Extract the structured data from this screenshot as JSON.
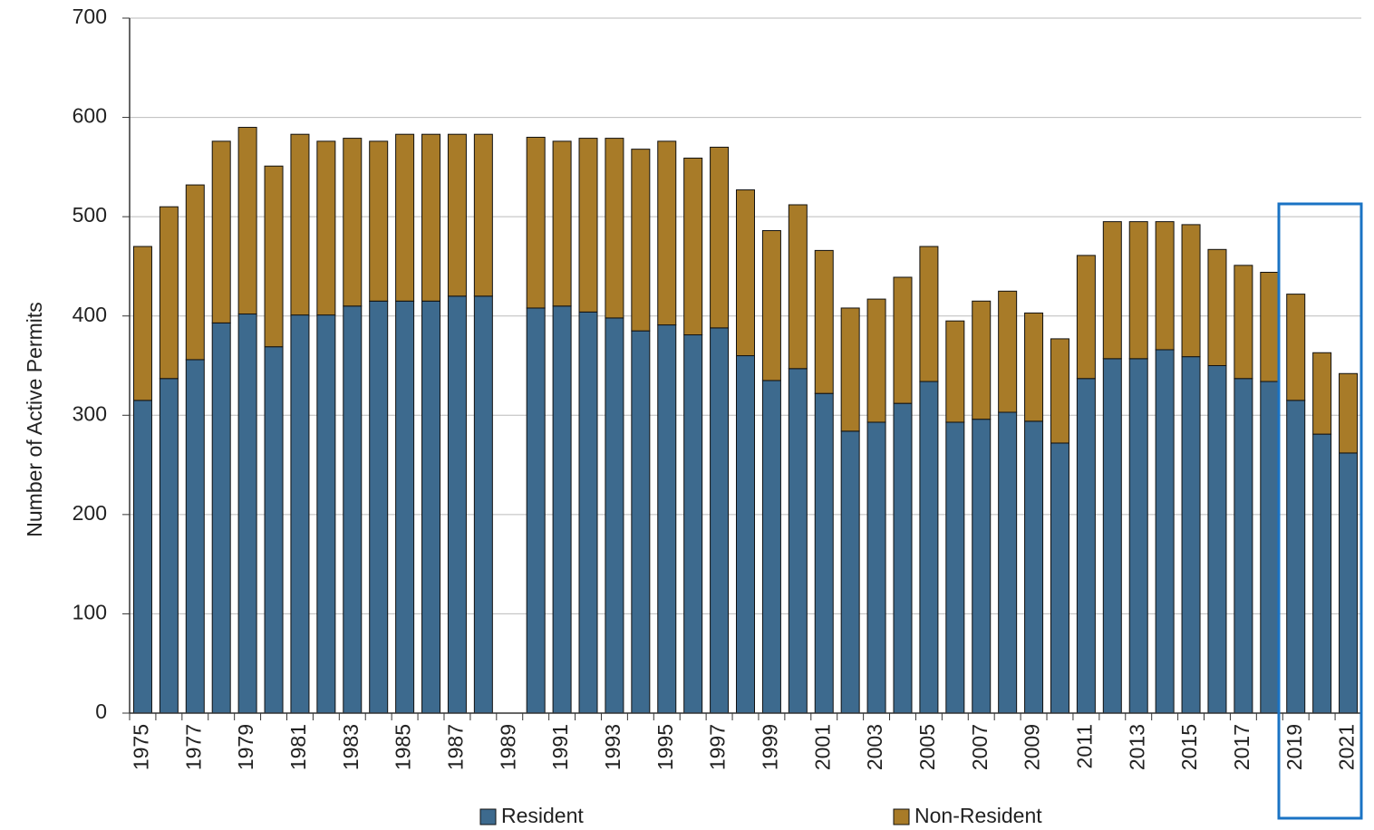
{
  "chart_data": {
    "type": "stacked_bar",
    "y_label": "Number of Active Permits",
    "categories": [
      "1975",
      null,
      "1977",
      null,
      "1979",
      null,
      "1981",
      null,
      "1983",
      null,
      "1985",
      null,
      "1987",
      null,
      "1989",
      null,
      "1991",
      null,
      "1993",
      null,
      "1995",
      null,
      "1997",
      null,
      "1999",
      null,
      "2001",
      null,
      "2003",
      null,
      "2005",
      null,
      "2007",
      null,
      "2009",
      null,
      "2011",
      null,
      "2013",
      null,
      "2015",
      null,
      "2017",
      null,
      "2019",
      null,
      "2021"
    ],
    "series": [
      {
        "name": "Resident",
        "color": "#3d6a8e",
        "values": [
          315,
          337,
          356,
          393,
          402,
          369,
          401,
          401,
          410,
          415,
          415,
          415,
          420,
          420,
          null,
          408,
          410,
          404,
          398,
          385,
          391,
          381,
          388,
          360,
          335,
          347,
          322,
          284,
          293,
          312,
          334,
          293,
          296,
          303,
          294,
          272,
          337,
          357,
          357,
          366,
          359,
          350,
          337,
          334,
          315,
          281,
          262
        ]
      },
      {
        "name": "Non-Resident",
        "color": "#a87b28",
        "values": [
          155,
          173,
          176,
          183,
          188,
          182,
          182,
          175,
          169,
          161,
          168,
          168,
          163,
          163,
          null,
          172,
          166,
          175,
          181,
          183,
          185,
          178,
          182,
          167,
          151,
          165,
          144,
          124,
          124,
          127,
          136,
          102,
          119,
          122,
          109,
          105,
          124,
          138,
          138,
          129,
          133,
          117,
          114,
          110,
          107,
          82,
          80
        ]
      }
    ],
    "ylim": [
      0,
      700
    ],
    "yticks": [
      0,
      100,
      200,
      300,
      400,
      500,
      600,
      700
    ],
    "grid": true
  }
}
